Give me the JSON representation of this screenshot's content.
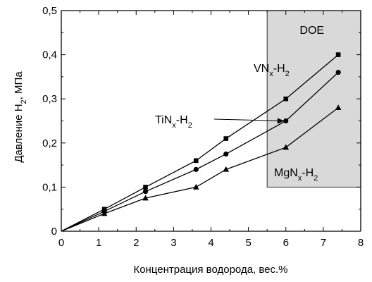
{
  "chart_data": {
    "type": "line",
    "xlabel": "Концентрация водорода, вес.%",
    "ylabel": {
      "before": "Давление H",
      "sub": "2",
      "after": ", МПа"
    },
    "xlim": [
      0,
      8
    ],
    "ylim": [
      0,
      0.5
    ],
    "x_ticks": [
      "0",
      "1",
      "2",
      "3",
      "4",
      "5",
      "6",
      "7",
      "8"
    ],
    "y_ticks": [
      "0",
      "0,1",
      "0,2",
      "0,3",
      "0,4",
      "0,5"
    ],
    "grid": false,
    "region": {
      "label": "DOE",
      "x": [
        5.5,
        8
      ],
      "y": [
        0.1,
        0.5
      ],
      "color": "#d9d9d9"
    },
    "series": [
      {
        "name": {
          "base": "VN",
          "sub": "x",
          "tail": "-H",
          "sub2": "2"
        },
        "marker": "square",
        "x": [
          0,
          1.15,
          2.25,
          3.6,
          4.4,
          6.0,
          7.4
        ],
        "y": [
          0,
          0.05,
          0.1,
          0.16,
          0.21,
          0.3,
          0.4
        ]
      },
      {
        "name": {
          "base": "TiN",
          "sub": "x",
          "tail": "-H",
          "sub2": "2"
        },
        "marker": "circle",
        "x": [
          0,
          1.15,
          2.25,
          3.6,
          4.4,
          6.0,
          7.4
        ],
        "y": [
          0,
          0.045,
          0.09,
          0.14,
          0.175,
          0.25,
          0.36
        ]
      },
      {
        "name": {
          "base": "MgN",
          "sub": "x",
          "tail": "-H",
          "sub2": "2"
        },
        "marker": "triangle",
        "x": [
          0,
          1.15,
          2.25,
          3.6,
          4.4,
          6.0,
          7.4
        ],
        "y": [
          0,
          0.04,
          0.075,
          0.1,
          0.14,
          0.19,
          0.28
        ]
      }
    ],
    "colors": {
      "line": "#000000",
      "region": "#d9d9d9"
    }
  }
}
